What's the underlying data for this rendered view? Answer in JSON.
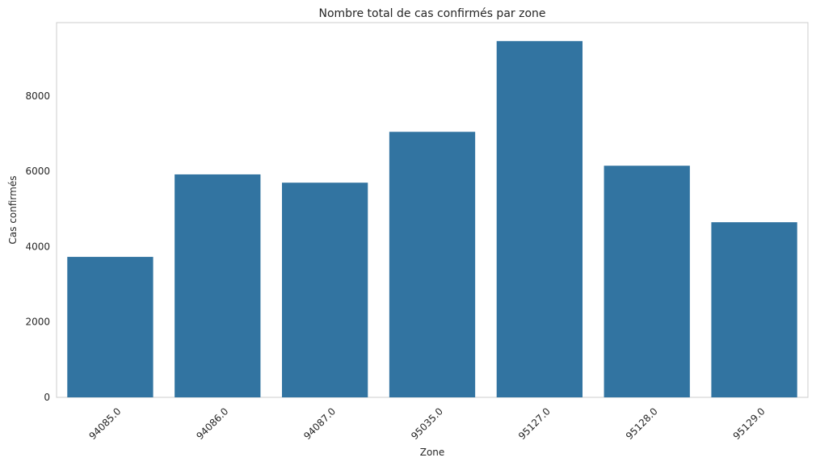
{
  "chart_data": {
    "type": "bar",
    "title": "Nombre total de cas confirmés par zone",
    "xlabel": "Zone",
    "ylabel": "Cas confirmés",
    "categories": [
      "94085.0",
      "94086.0",
      "94087.0",
      "95035.0",
      "95127.0",
      "95128.0",
      "95129.0"
    ],
    "values": [
      3730,
      5920,
      5700,
      7050,
      9460,
      6150,
      4650
    ],
    "yticks": [
      0,
      2000,
      4000,
      6000,
      8000
    ],
    "ylim": [
      0,
      9950
    ],
    "grid": false,
    "bar_color": "#3274a1",
    "x_tick_rotation": -45
  }
}
